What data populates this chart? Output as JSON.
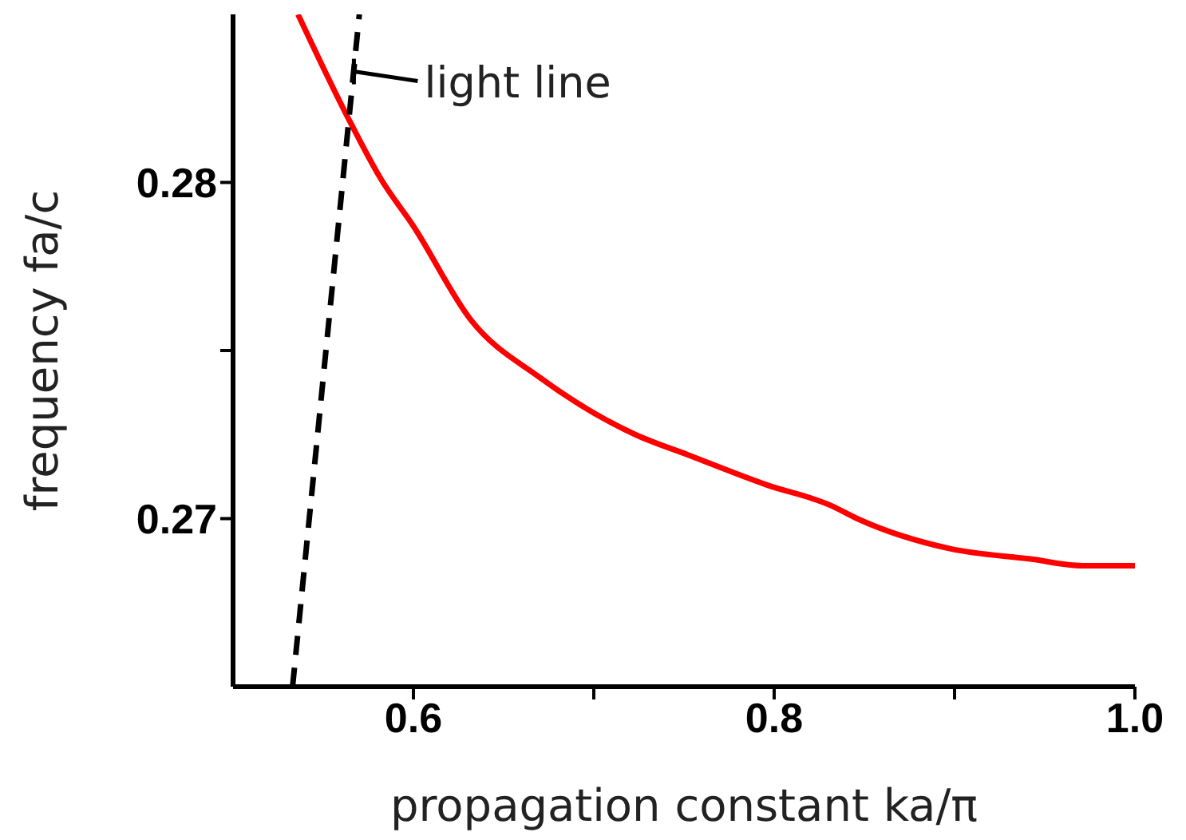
{
  "chart_data": {
    "type": "line",
    "xlabel": "propagation constant ka/π",
    "ylabel": "frequency fa/c",
    "xlim": [
      0.5,
      1.0
    ],
    "ylim": [
      0.265,
      0.285
    ],
    "xticks": [
      0.6,
      {
        "value": 0.7,
        "label": null
      },
      0.8,
      {
        "value": 0.9,
        "label": null
      },
      {
        "value": 1.0,
        "label": "1.0"
      }
    ],
    "yticks": [
      0.27,
      {
        "value": 0.275,
        "label": null
      },
      0.28
    ],
    "marker": "none",
    "series": [
      {
        "color": "#ff0000",
        "line_style": "solid",
        "x": [
          0.536,
          0.563,
          0.582,
          0.6,
          0.632,
          0.67,
          0.723,
          0.752,
          0.796,
          0.831,
          0.846,
          0.898,
          0.942,
          0.971,
          1.0
        ],
        "values": [
          0.285,
          0.282,
          0.2801,
          0.2787,
          0.2759,
          0.2742,
          0.2725,
          0.2719,
          0.271,
          0.2704,
          0.27,
          0.2691,
          0.2688,
          0.2686,
          0.2686
        ]
      },
      {
        "color": "#000000",
        "line_style": "dashed",
        "x": [
          0.533,
          0.57
        ],
        "values": [
          0.265,
          0.285
        ]
      }
    ],
    "annotations": [
      {
        "text": "light line",
        "x": 0.567,
        "y": 0.2833
      }
    ]
  }
}
